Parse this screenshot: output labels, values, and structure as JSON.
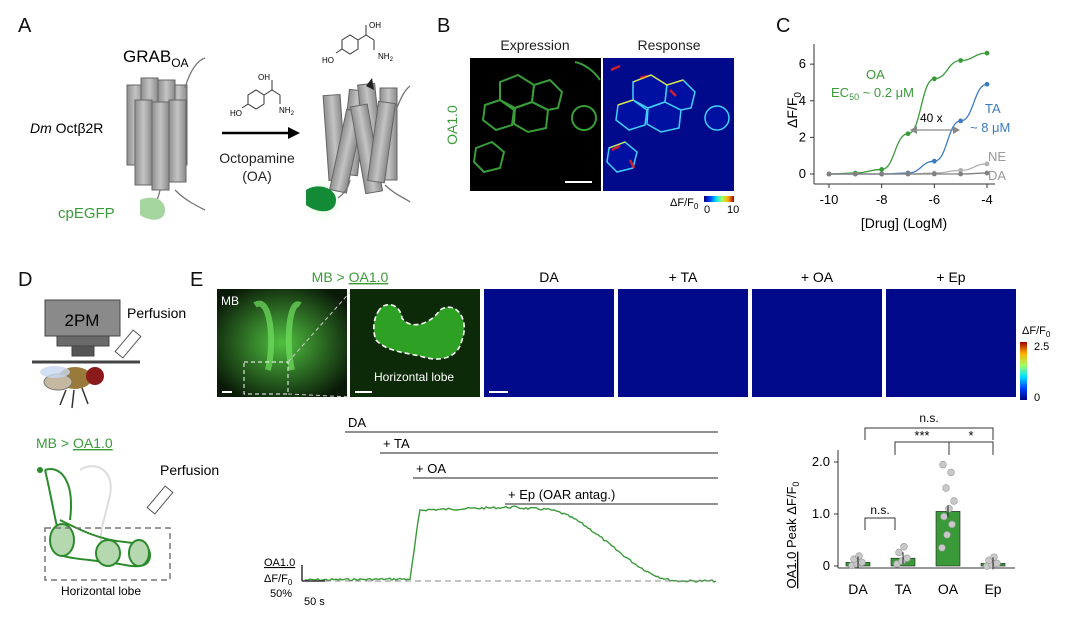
{
  "panels": {
    "a": "A",
    "b": "B",
    "c": "C",
    "d": "D",
    "e": "E"
  },
  "a": {
    "grab_main": "GRAB",
    "grab_sub": "OA",
    "receptor_prefix": "Dm",
    "receptor_name": "Octβ2R",
    "cpegfp": "cpEGFP",
    "ligand_name": "Octopamine",
    "ligand_abbr": "(OA)",
    "chem_oh": "OH",
    "chem_ho": "HO",
    "chem_nh2": "NH",
    "chem_nh2_sub": "2"
  },
  "b": {
    "side_label": "OA1.0",
    "col_expression": "Expression",
    "col_response": "Response",
    "cbar_label": "ΔF/F",
    "cbar_sub": "0",
    "cbar_min": "0",
    "cbar_max": "10"
  },
  "c": {
    "oa_label": "OA",
    "oa_ec50_a": "EC",
    "oa_ec50_sub": "50",
    "oa_ec50_b": " ~ 0.2 μM",
    "ta_label": "TA",
    "ta_ec50": "~ 8 μM",
    "ne_label": "NE",
    "da_label": "DA",
    "fold_label": "40 x",
    "xlabel": "[Drug] (LogM)",
    "ylabel": "ΔF/F",
    "ylabel_sub": "0",
    "xticks": [
      "-10",
      "-8",
      "-6",
      "-4"
    ],
    "yticks": [
      "0",
      "2",
      "4",
      "6"
    ]
  },
  "d": {
    "microscope": "2PM",
    "perfusion_top": "Perfusion",
    "mb_prefix": "MB > ",
    "mb_sensor": "OA1.0",
    "perfusion_bottom": "Perfusion",
    "lobe": "Horizontal lobe"
  },
  "e": {
    "title_prefix": "MB > ",
    "title_sensor": "OA1.0",
    "img_mb": "MB",
    "img_lobe": "Horizontal lobe",
    "conds": [
      "DA",
      "+ TA",
      "+ OA",
      "+ Ep"
    ],
    "cbar_label": "ΔF/F",
    "cbar_sub": "0",
    "cbar_max": "2.5",
    "cbar_min": "0",
    "trace_bars": [
      "DA",
      "+ TA",
      "+ OA",
      "+ Ep (OAR antag.)"
    ],
    "scale_sensor": "OA1.0",
    "scale_dff": "ΔF/F",
    "scale_dff_sub": "0",
    "scale_pct": "50%",
    "scale_time": "50 s",
    "bar_ylabel_sensor": "OA1.0",
    "bar_ylabel_rest": " Peak ΔF/F",
    "bar_ylabel_sub": "0",
    "sig_ns_top": "n.s.",
    "sig_triple": "***",
    "sig_single": "*",
    "sig_ns_low": "n.s."
  },
  "chart_data": [
    {
      "type": "line",
      "title": "",
      "xlabel": "[Drug] (LogM)",
      "ylabel": "ΔF/F0",
      "xlim": [
        -10,
        -4
      ],
      "ylim": [
        0,
        7
      ],
      "series": [
        {
          "name": "OA",
          "color": "#3a9a3a",
          "x": [
            -10,
            -9,
            -8,
            -7,
            -6,
            -5,
            -4
          ],
          "y": [
            0.0,
            0.05,
            0.25,
            2.2,
            5.2,
            6.2,
            6.6
          ]
        },
        {
          "name": "TA",
          "color": "#3c7bbf",
          "x": [
            -10,
            -9,
            -8,
            -7,
            -6,
            -5,
            -4
          ],
          "y": [
            0.0,
            0.0,
            0.0,
            0.05,
            0.7,
            2.9,
            4.9
          ]
        },
        {
          "name": "NE",
          "color": "#b0b0b0",
          "x": [
            -10,
            -9,
            -8,
            -7,
            -6,
            -5,
            -4
          ],
          "y": [
            0.0,
            0.0,
            0.0,
            0.0,
            0.05,
            0.2,
            0.55
          ]
        },
        {
          "name": "DA",
          "color": "#808080",
          "x": [
            -10,
            -9,
            -8,
            -7,
            -6,
            -5,
            -4
          ],
          "y": [
            0.0,
            0.0,
            0.0,
            0.0,
            0.0,
            0.0,
            0.05
          ]
        }
      ]
    },
    {
      "type": "bar",
      "title": "",
      "xlabel": "",
      "ylabel": "OA1.0 Peak ΔF/F0",
      "categories": [
        "DA",
        "TA",
        "OA",
        "Ep"
      ],
      "values": [
        0.07,
        0.15,
        1.05,
        0.05
      ],
      "ylim": [
        0,
        2.2
      ],
      "yticks": [
        "0",
        "1.0",
        "2.0"
      ]
    }
  ]
}
